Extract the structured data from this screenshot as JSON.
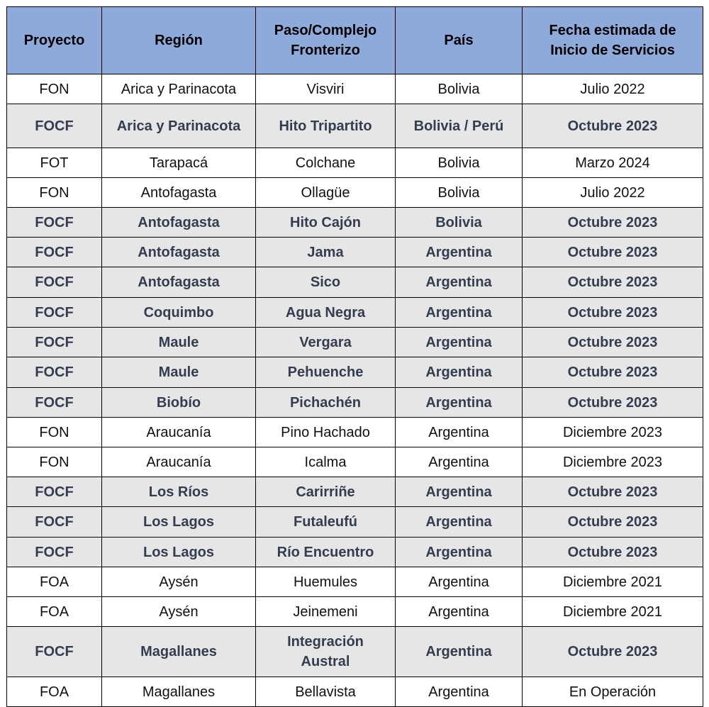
{
  "table": {
    "headers": [
      "Proyecto",
      "Región",
      "Paso/Complejo Fronterizo",
      "País",
      "Fecha estimada de Inicio de Servicios"
    ],
    "rows": [
      [
        "FON",
        "Arica y Parinacota",
        "Visviri",
        "Bolivia",
        "Julio 2022"
      ],
      [
        "FOCF",
        "Arica y Parinacota",
        "Hito Tripartito",
        "Bolivia / Perú",
        "Octubre 2023"
      ],
      [
        "FOT",
        "Tarapacá",
        "Colchane",
        "Bolivia",
        "Marzo 2024"
      ],
      [
        "FON",
        "Antofagasta",
        "Ollagüe",
        "Bolivia",
        "Julio 2022"
      ],
      [
        "FOCF",
        "Antofagasta",
        "Hito Cajón",
        "Bolivia",
        "Octubre 2023"
      ],
      [
        "FOCF",
        "Antofagasta",
        "Jama",
        "Argentina",
        "Octubre 2023"
      ],
      [
        "FOCF",
        "Antofagasta",
        "Sico",
        "Argentina",
        "Octubre 2023"
      ],
      [
        "FOCF",
        "Coquimbo",
        "Agua Negra",
        "Argentina",
        "Octubre 2023"
      ],
      [
        "FOCF",
        "Maule",
        "Vergara",
        "Argentina",
        "Octubre 2023"
      ],
      [
        "FOCF",
        "Maule",
        "Pehuenche",
        "Argentina",
        "Octubre 2023"
      ],
      [
        "FOCF",
        "Biobío",
        "Pichachén",
        "Argentina",
        "Octubre 2023"
      ],
      [
        "FON",
        "Araucanía",
        "Pino Hachado",
        "Argentina",
        "Diciembre 2023"
      ],
      [
        "FON",
        "Araucanía",
        "Icalma",
        "Argentina",
        "Diciembre 2023"
      ],
      [
        "FOCF",
        "Los Ríos",
        "Carirriñe",
        "Argentina",
        "Octubre 2023"
      ],
      [
        "FOCF",
        "Los Lagos",
        "Futaleufú",
        "Argentina",
        "Octubre 2023"
      ],
      [
        "FOCF",
        "Los Lagos",
        "Río Encuentro",
        "Argentina",
        "Octubre 2023"
      ],
      [
        "FOA",
        "Aysén",
        "Huemules",
        "Argentina",
        "Diciembre 2021"
      ],
      [
        "FOA",
        "Aysén",
        "Jeinemeni",
        "Argentina",
        "Diciembre 2021"
      ],
      [
        "FOCF",
        "Magallanes",
        "Integración Austral",
        "Argentina",
        "Octubre 2023"
      ],
      [
        "FOA",
        "Magallanes",
        "Bellavista",
        "Argentina",
        "En Operación"
      ]
    ]
  },
  "colors": {
    "header_bg": "#8eaadb",
    "highlight_row_bg": "#e7e6e6",
    "highlight_text": "#323e4f"
  }
}
